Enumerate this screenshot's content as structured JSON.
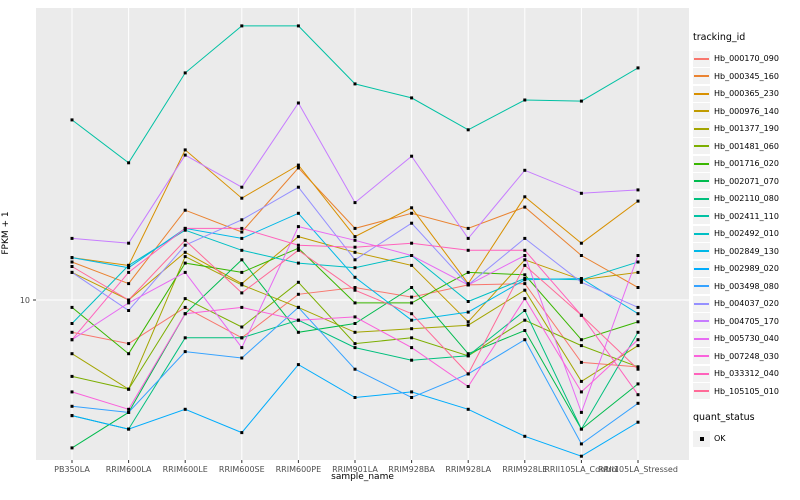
{
  "figure": {
    "x_axis_title": "sample_name",
    "y_axis_title": "FPKM + 1"
  },
  "legend": {
    "tracking_title": "tracking_id",
    "quant_title": "quant_status",
    "quant_ok_label": "OK"
  },
  "style": {
    "panel_bg": "#ebebeb",
    "grid_color": "#ffffff",
    "tick_label_color": "#4d4d4d",
    "point_color": "#000000"
  },
  "chart_data": {
    "type": "line",
    "title": "",
    "xlabel": "sample_name",
    "ylabel": "FPKM + 1",
    "yscale": "log10",
    "y_ticks": [
      10
    ],
    "ylim": [
      3.3,
      75
    ],
    "grid": "major",
    "legend_position": "right",
    "point_marker": "black-square",
    "categories": [
      "PB350LA",
      "RRIM600LA",
      "RRIM600LE",
      "RRIM600SE",
      "RRIM600PE",
      "RRIM901LA",
      "RRIM928BA",
      "RRIM928LA",
      "RRIM928LE",
      "RRII105LA_Control",
      "RRII105LA_Stressed"
    ],
    "quant_status": [
      "OK"
    ],
    "series": [
      {
        "name": "Hb_000170_090",
        "color": "#F8766D",
        "values": [
          8.0,
          7.4,
          9.5,
          7.7,
          10.4,
          10.9,
          10.2,
          11.1,
          11.2,
          6.5,
          6.3
        ]
      },
      {
        "name": "Hb_000345_160",
        "color": "#EA8331",
        "values": [
          13.0,
          11.2,
          18.6,
          16.0,
          24.9,
          16.4,
          18.2,
          16.4,
          19.0,
          13.6,
          10.9
        ]
      },
      {
        "name": "Hb_000365_230",
        "color": "#D89000",
        "values": [
          13.4,
          12.7,
          28.2,
          20.2,
          25.4,
          15.5,
          18.9,
          11.2,
          20.4,
          14.8,
          19.8
        ]
      },
      {
        "name": "Hb_000976_140",
        "color": "#C09B00",
        "values": [
          12.1,
          10.0,
          13.9,
          11.2,
          15.5,
          13.9,
          12.7,
          8.6,
          13.2,
          11.5,
          12.1
        ]
      },
      {
        "name": "Hb_001377_190",
        "color": "#A3A500",
        "values": [
          6.9,
          5.4,
          13.5,
          11.1,
          9.5,
          8.0,
          8.2,
          8.4,
          10.7,
          5.7,
          7.3
        ]
      },
      {
        "name": "Hb_001481_060",
        "color": "#7CAE00",
        "values": [
          5.9,
          5.4,
          10.1,
          8.3,
          11.3,
          7.4,
          7.7,
          6.8,
          8.7,
          7.3,
          6.3
        ]
      },
      {
        "name": "Hb_001716_020",
        "color": "#39B600",
        "values": [
          9.5,
          6.9,
          12.9,
          12.1,
          14.3,
          9.8,
          9.8,
          12.1,
          11.9,
          7.6,
          8.6
        ]
      },
      {
        "name": "Hb_002071_070",
        "color": "#00BB4E",
        "values": [
          3.6,
          4.6,
          9.1,
          13.2,
          8.0,
          8.5,
          10.9,
          6.9,
          8.1,
          4.1,
          5.6
        ]
      },
      {
        "name": "Hb_002110_080",
        "color": "#00BF7D",
        "values": [
          4.5,
          4.1,
          7.7,
          7.7,
          8.7,
          7.2,
          6.6,
          6.8,
          9.3,
          4.1,
          8.0
        ]
      },
      {
        "name": "Hb_002411_110",
        "color": "#00C1A3",
        "values": [
          34.7,
          25.8,
          48.0,
          66.4,
          66.4,
          44.5,
          40.4,
          32.4,
          39.8,
          39.5,
          49.7
        ]
      },
      {
        "name": "Hb_002492_010",
        "color": "#00BFC4",
        "values": [
          8.5,
          12.7,
          16.2,
          14.1,
          12.9,
          12.5,
          13.6,
          9.9,
          11.6,
          11.5,
          13.0
        ]
      },
      {
        "name": "Hb_002849_130",
        "color": "#00B8E7",
        "values": [
          13.4,
          12.5,
          16.4,
          15.3,
          18.2,
          11.7,
          8.7,
          9.2,
          11.5,
          11.6,
          9.1
        ]
      },
      {
        "name": "Hb_002989_020",
        "color": "#00ACFC",
        "values": [
          4.5,
          4.1,
          4.7,
          4.0,
          6.4,
          5.1,
          5.3,
          4.7,
          3.9,
          3.4,
          4.3
        ]
      },
      {
        "name": "Hb_003498_080",
        "color": "#35A2FF",
        "values": [
          4.8,
          4.6,
          7.0,
          6.7,
          9.5,
          6.2,
          5.1,
          6.0,
          7.6,
          3.7,
          4.9
        ]
      },
      {
        "name": "Hb_004037_020",
        "color": "#9590FF",
        "values": [
          12.1,
          9.3,
          14.6,
          17.4,
          21.8,
          13.2,
          17.0,
          11.1,
          15.3,
          11.3,
          9.5
        ]
      },
      {
        "name": "Hb_004705_170",
        "color": "#C77CFF",
        "values": [
          15.3,
          14.8,
          27.2,
          21.8,
          39.0,
          19.6,
          27.0,
          15.3,
          24.5,
          20.9,
          21.4
        ]
      },
      {
        "name": "Hb_005730_040",
        "color": "#E76BF3",
        "values": [
          7.6,
          9.8,
          12.1,
          7.2,
          16.6,
          15.1,
          13.6,
          11.1,
          13.6,
          4.6,
          13.6
        ]
      },
      {
        "name": "Hb_007248_030",
        "color": "#FA62DB",
        "values": [
          5.3,
          4.7,
          9.1,
          9.5,
          8.7,
          8.9,
          7.2,
          5.5,
          10.1,
          5.3,
          7.6
        ]
      },
      {
        "name": "Hb_033312_040",
        "color": "#FF62BC",
        "values": [
          7.6,
          12.1,
          16.4,
          16.4,
          14.6,
          14.4,
          14.8,
          14.1,
          14.1,
          9.0,
          5.2
        ]
      },
      {
        "name": "Hb_105105_010",
        "color": "#FF6A98",
        "values": [
          12.6,
          10.0,
          15.1,
          10.5,
          14.1,
          10.7,
          9.1,
          6.0,
          12.7,
          9.0,
          6.2
        ]
      }
    ]
  }
}
